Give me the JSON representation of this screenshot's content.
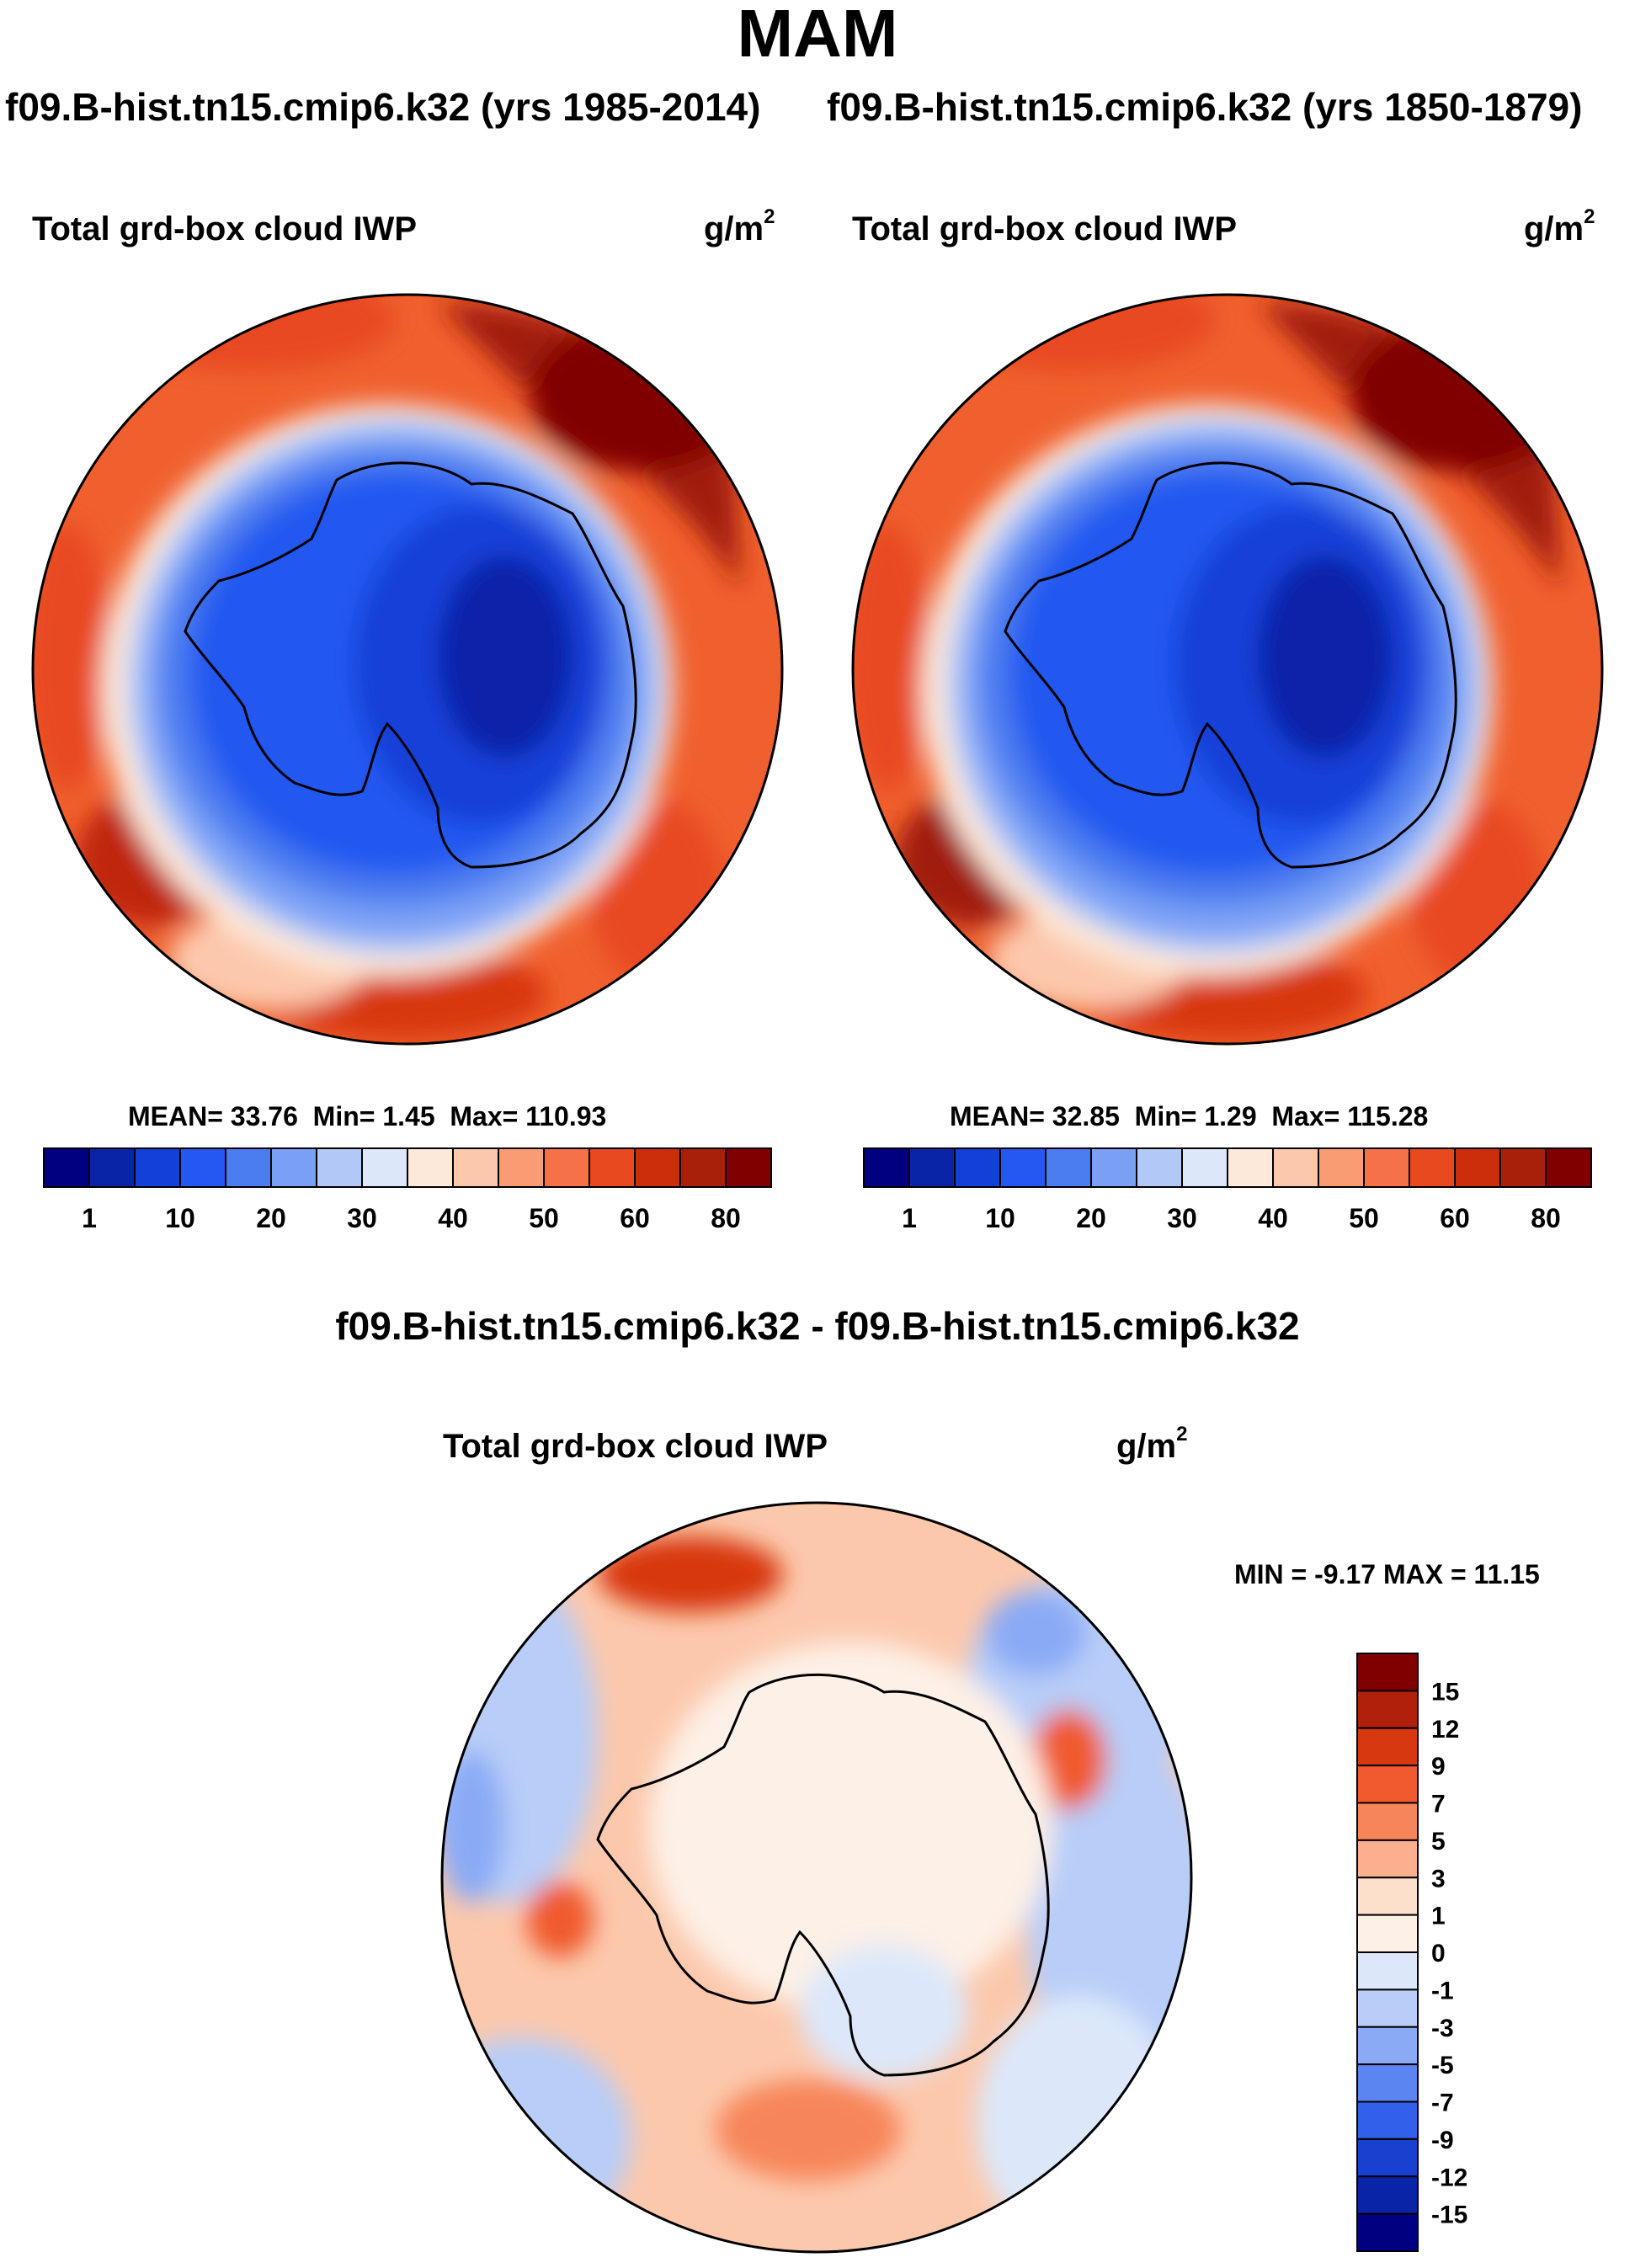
{
  "main_title": "MAM",
  "subtitle_left": "f09.B-hist.tn15.cmip6.k32 (yrs 1985-2014)",
  "subtitle_right": "f09.B-hist.tn15.cmip6.k32 (yrs 1850-1879)",
  "diff_title": "f09.B-hist.tn15.cmip6.k32 - f09.B-hist.tn15.cmip6.k32",
  "variable": "Total grd-box cloud IWP",
  "units": "g/m",
  "units_exp": "2",
  "chart_data": [
    {
      "type": "heatmap",
      "title": "Total grd-box cloud IWP",
      "units": "g/m2",
      "projection": "south-polar stereographic",
      "stats": {
        "mean_label": "MEAN=",
        "mean": "33.76",
        "min_label": "Min=",
        "min": "1.45",
        "max_label": "Max=",
        "max": "110.93"
      },
      "colorbar": {
        "orientation": "horizontal",
        "colors": [
          "#000080",
          "#0a24a8",
          "#1340d8",
          "#2458f0",
          "#4b7cf0",
          "#7aa0f5",
          "#b2c8f7",
          "#dce8fa",
          "#fde9d9",
          "#fcc8ac",
          "#f99b73",
          "#f5714a",
          "#e8491f",
          "#cc2e0c",
          "#a8200a",
          "#800000"
        ],
        "tick_labels": [
          "1",
          "10",
          "20",
          "30",
          "40",
          "50",
          "60",
          "80"
        ]
      }
    },
    {
      "type": "heatmap",
      "title": "Total grd-box cloud IWP",
      "units": "g/m2",
      "projection": "south-polar stereographic",
      "stats": {
        "mean_label": "MEAN=",
        "mean": "32.85",
        "min_label": "Min=",
        "min": "1.29",
        "max_label": "Max=",
        "max": "115.28"
      },
      "colorbar": {
        "orientation": "horizontal",
        "colors": [
          "#000080",
          "#0a24a8",
          "#1340d8",
          "#2458f0",
          "#4b7cf0",
          "#7aa0f5",
          "#b2c8f7",
          "#dce8fa",
          "#fde9d9",
          "#fcc8ac",
          "#f99b73",
          "#f5714a",
          "#e8491f",
          "#cc2e0c",
          "#a8200a",
          "#800000"
        ],
        "tick_labels": [
          "1",
          "10",
          "20",
          "30",
          "40",
          "50",
          "60",
          "80"
        ]
      }
    },
    {
      "type": "heatmap",
      "title": "Total grd-box cloud IWP",
      "units": "g/m2",
      "projection": "south-polar stereographic",
      "stats": {
        "min_label": "MIN =",
        "min": "-9.17",
        "max_label": "MAX =",
        "max": "11.15"
      },
      "colorbar": {
        "orientation": "vertical",
        "colors_top_to_bottom": [
          "#800000",
          "#b0200a",
          "#d8380f",
          "#f05a2e",
          "#f7855a",
          "#fab08e",
          "#fde0cc",
          "#fdf0e6",
          "#dce8fa",
          "#b8cdf8",
          "#8aaaf5",
          "#5b85f0",
          "#3360e8",
          "#1a40d0",
          "#0a24a8",
          "#000080"
        ],
        "tick_labels": [
          "15",
          "12",
          "9",
          "7",
          "5",
          "3",
          "1",
          "0",
          "-1",
          "-3",
          "-5",
          "-7",
          "-9",
          "-12",
          "-15"
        ]
      }
    }
  ]
}
